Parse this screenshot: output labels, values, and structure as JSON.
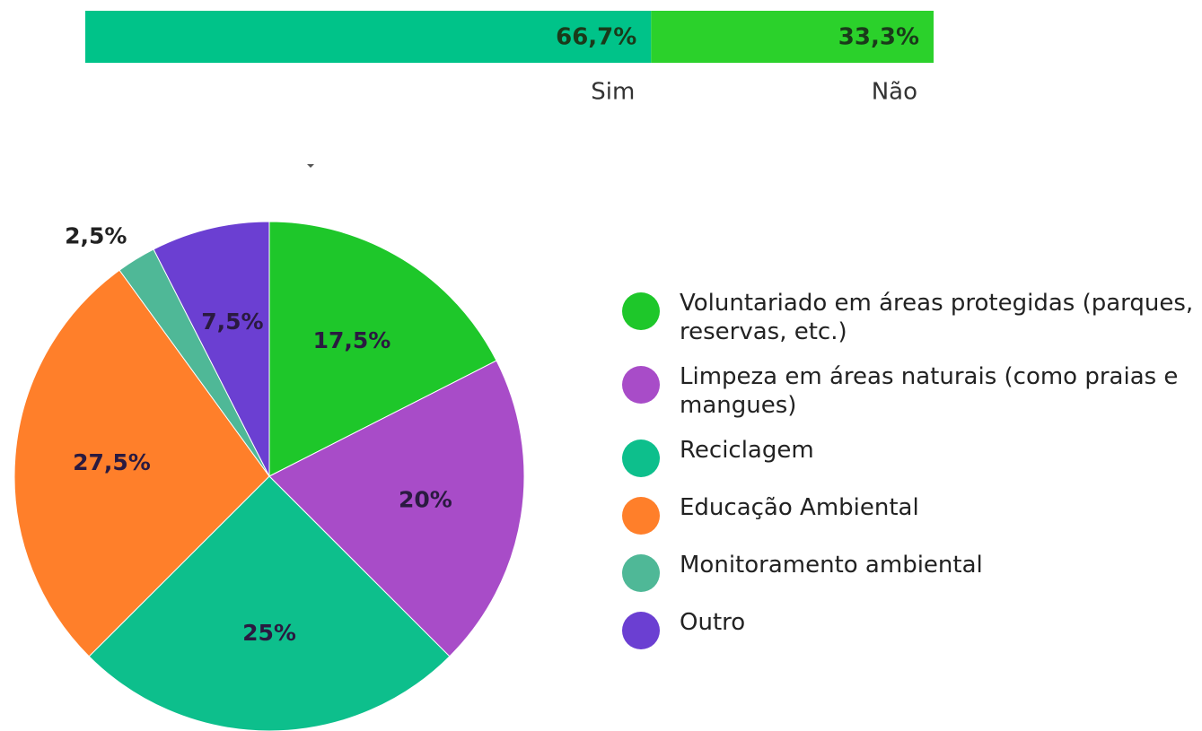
{
  "chart_data": [
    {
      "type": "stacked-bar",
      "series": [
        {
          "name": "Sim",
          "color": "#00c389",
          "values": [
            66.7
          ],
          "value_labels": [
            "66,7%"
          ]
        },
        {
          "name": "Não",
          "color": "#2bd12b",
          "values": [
            33.3
          ],
          "value_labels": [
            "33,3%"
          ]
        }
      ]
    },
    {
      "type": "pie",
      "categories": [
        "Voluntariado em áreas protegidas (parques, reservas, etc.)",
        "Limpeza em áreas naturais (como praias e mangues)",
        "Reciclagem",
        "Educação Ambiental",
        "Monitoramento ambiental",
        "Outro"
      ],
      "values": [
        17.5,
        20,
        25,
        27.5,
        2.5,
        7.5
      ],
      "value_labels": [
        "17,5%",
        "20%",
        "25%",
        "27,5%",
        "2,5%",
        "7,5%"
      ],
      "colors": [
        "#1ec72a",
        "#a84cc8",
        "#0dbf8c",
        "#ff7f2a",
        "#4fb897",
        "#6b3fd2"
      ]
    }
  ]
}
